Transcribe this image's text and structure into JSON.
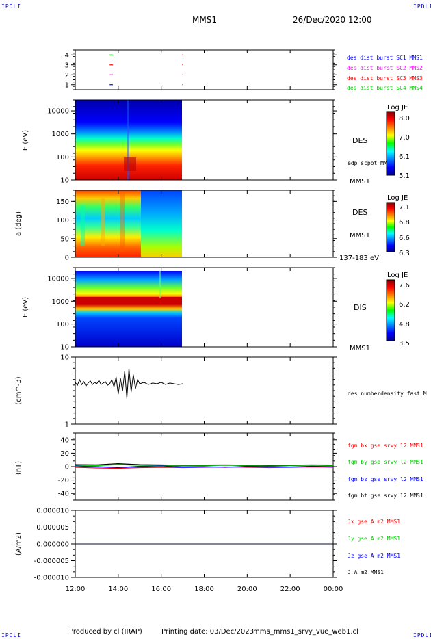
{
  "header": {
    "mission": "MMS1",
    "date": "26/Dec/2020 12:00",
    "corner_label": "IPDLI"
  },
  "footer": {
    "producer": "Produced by cl (IRAP)",
    "printing": "Printing date: 03/Dec/2023",
    "file": "mms_mms1_srvy_vue_web1.cl"
  },
  "colors": {
    "mms1": "#0000ff",
    "mms2": "#ff00ff",
    "mms3": "#ff0000",
    "mms4": "#00cc00",
    "bx": "#ff0000",
    "by": "#00cc00",
    "bz": "#0000ff",
    "bt": "#000000"
  },
  "chart_data": [
    {
      "type": "line",
      "panel": "burst-availability",
      "y_ticks": [
        "1",
        "2",
        "3",
        "4"
      ],
      "ylim": [
        0.5,
        4.5
      ],
      "series": [
        {
          "name": "des dist burst SC1 MMS1",
          "y": 1,
          "x": [
            13.6,
            13.75
          ]
        },
        {
          "name": "des dist burst SC2 MMS2",
          "y": 2,
          "x": [
            13.6,
            13.75
          ]
        },
        {
          "name": "des dist burst SC3 MMS3",
          "y": 3,
          "x": [
            13.6,
            13.75
          ]
        },
        {
          "name": "des dist burst SC4 MMS4",
          "y": 4,
          "x": [
            13.6,
            13.75
          ]
        }
      ]
    },
    {
      "type": "heatmap",
      "panel": "des-energy-spectrogram",
      "ylabel": "E (eV)",
      "y_scale": "log",
      "ylim": [
        10,
        30000
      ],
      "y_ticks": [
        "10",
        "100",
        "1000",
        "10000"
      ],
      "data_xlim": [
        12.0,
        17.0
      ],
      "instrument": "DES",
      "overlay_label": "edp scpot MMS1",
      "spacecraft_label": "MMS1",
      "colorbar": {
        "title": "Log JE",
        "ticks": [
          "8.0",
          "7.0",
          "6.1",
          "5.1"
        ],
        "range": [
          5.1,
          8.0
        ]
      }
    },
    {
      "type": "heatmap",
      "panel": "des-pitch-angle",
      "ylabel": "a (deg)",
      "ylim": [
        0,
        180
      ],
      "y_ticks": [
        "0",
        "50",
        "100",
        "150"
      ],
      "data_xlim": [
        12.0,
        17.0
      ],
      "instrument": "DES",
      "spacecraft_label": "MMS1",
      "energy_range": "137-183 eV",
      "colorbar": {
        "title": "Log JE",
        "ticks": [
          "7.1",
          "6.8",
          "6.6",
          "6.3"
        ],
        "range": [
          6.3,
          7.1
        ]
      }
    },
    {
      "type": "heatmap",
      "panel": "dis-energy-spectrogram",
      "ylabel": "E (eV)",
      "y_scale": "log",
      "ylim": [
        10,
        30000
      ],
      "y_ticks": [
        "10",
        "100",
        "1000",
        "10000"
      ],
      "data_xlim": [
        12.0,
        17.0
      ],
      "instrument": "DIS",
      "spacecraft_label": "MMS1",
      "colorbar": {
        "title": "Log JE",
        "ticks": [
          "7.6",
          "6.2",
          "4.8",
          "3.5"
        ],
        "range": [
          3.5,
          7.6
        ]
      }
    },
    {
      "type": "line",
      "panel": "density",
      "ylabel": "(cm^-3)",
      "y_scale": "log",
      "ylim": [
        1,
        10
      ],
      "y_ticks": [
        "1",
        "10"
      ],
      "series": [
        {
          "name": "des numberdensity fast M",
          "x": [
            12.0,
            12.1,
            12.2,
            12.3,
            12.4,
            12.5,
            12.6,
            12.7,
            12.8,
            12.9,
            13.0,
            13.1,
            13.2,
            13.3,
            13.4,
            13.5,
            13.6,
            13.7,
            13.8,
            13.9,
            14.0,
            14.1,
            14.2,
            14.3,
            14.4,
            14.5,
            14.6,
            14.7,
            14.8,
            14.9,
            15.0,
            15.2,
            15.4,
            15.6,
            15.8,
            16.0,
            16.2,
            16.4,
            16.6,
            16.8,
            17.0
          ],
          "y": [
            4.2,
            3.8,
            4.6,
            3.9,
            4.3,
            3.7,
            4.1,
            4.4,
            3.9,
            4.2,
            4.0,
            4.5,
            3.9,
            4.1,
            4.3,
            3.8,
            4.0,
            4.6,
            3.6,
            5.1,
            2.8,
            4.9,
            3.1,
            6.2,
            2.4,
            6.8,
            3.0,
            5.5,
            3.4,
            4.6,
            4.0,
            4.2,
            3.9,
            4.1,
            4.0,
            4.2,
            3.9,
            4.1,
            4.0,
            3.9,
            4.0
          ]
        }
      ]
    },
    {
      "type": "line",
      "panel": "magnetic-field",
      "ylabel": "(nT)",
      "ylim": [
        -50,
        50
      ],
      "y_ticks": [
        "-40",
        "-20",
        "0",
        "20",
        "40"
      ],
      "series": [
        {
          "name": "fgm bx gse srvy l2 MMS1",
          "x": [
            12,
            13,
            14,
            15,
            16,
            17,
            18,
            19,
            20,
            21,
            22,
            23,
            24
          ],
          "y": [
            -1,
            -2,
            -2.5,
            -1.5,
            -1,
            -1.5,
            -1,
            -0.5,
            -1,
            -1.5,
            -1,
            -0.5,
            -1
          ]
        },
        {
          "name": "fgm by gse srvy l2 MMS1",
          "x": [
            12,
            13,
            14,
            15,
            16,
            17,
            18,
            19,
            20,
            21,
            22,
            23,
            24
          ],
          "y": [
            2,
            1.5,
            3,
            2,
            1.5,
            1,
            1.5,
            2,
            1.5,
            1,
            1.5,
            2,
            1.5
          ]
        },
        {
          "name": "fgm bz gse srvy l2 MMS1",
          "x": [
            12,
            13,
            14,
            15,
            16,
            17,
            18,
            19,
            20,
            21,
            22,
            23,
            24
          ],
          "y": [
            1,
            0,
            -1.5,
            0.5,
            1,
            -0.5,
            0,
            -1,
            0.5,
            0,
            -0.5,
            0.5,
            0
          ]
        },
        {
          "name": "fgm bt gse srvy l2 MMS1",
          "x": [
            12,
            13,
            14,
            15,
            16,
            17,
            18,
            19,
            20,
            21,
            22,
            23,
            24
          ],
          "y": [
            3,
            2.8,
            4.5,
            3,
            2.6,
            2.2,
            2.4,
            2.6,
            2.3,
            2.1,
            2.3,
            2.5,
            2.4
          ]
        }
      ]
    },
    {
      "type": "line",
      "panel": "current-density",
      "ylabel": "(A/m2)",
      "ylim": [
        -1e-05,
        1e-05
      ],
      "y_ticks": [
        "-0.000010",
        "-0.000005",
        "0.000000",
        "0.000005",
        "0.000010"
      ],
      "series": [
        {
          "name": "Jx gse A m2 MMS1",
          "x": [
            12,
            24
          ],
          "y": [
            0,
            0
          ]
        },
        {
          "name": "Jy gse A m2 MMS1",
          "x": [
            12,
            24
          ],
          "y": [
            0,
            0
          ]
        },
        {
          "name": "Jz gse A m2 MMS1",
          "x": [
            12,
            24
          ],
          "y": [
            0,
            0
          ]
        },
        {
          "name": "J A m2 MMS1",
          "x": [
            12,
            24
          ],
          "y": [
            0,
            0
          ]
        }
      ]
    }
  ],
  "x_axis": {
    "xlim": [
      12,
      24
    ],
    "tick_values": [
      12,
      14,
      16,
      18,
      20,
      22,
      24
    ],
    "tick_labels": [
      "12:00",
      "14:00",
      "16:00",
      "18:00",
      "20:00",
      "22:00",
      "00:00"
    ]
  }
}
